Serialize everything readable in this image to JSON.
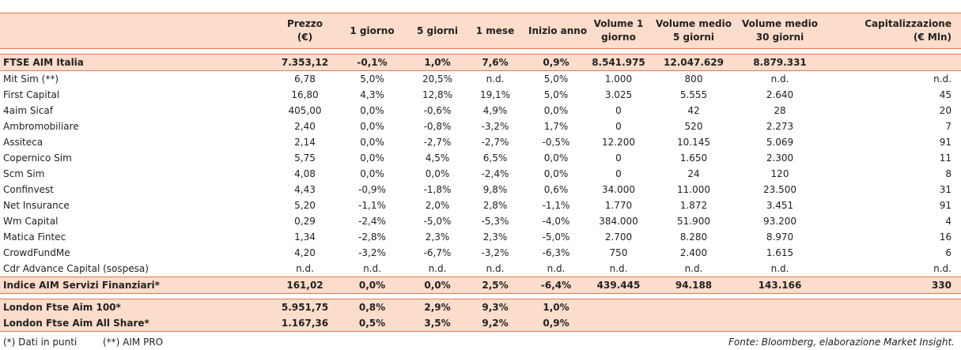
{
  "columns": [
    "",
    "Prezzo (€)",
    "1 giorno",
    "5 giorni",
    "1 mese",
    "Inizio anno",
    "Volume 1 giorno",
    "Volume medio 5 giorni",
    "Volume medio 30 giorni",
    "Capitalizzazione (€ Mln)"
  ],
  "header_lines": [
    [
      "",
      ""
    ],
    [
      "Prezzo",
      "(€)"
    ],
    [
      "1 giorno",
      ""
    ],
    [
      "5 giorni",
      ""
    ],
    [
      "1 mese",
      ""
    ],
    [
      "Inizio anno",
      ""
    ],
    [
      "Volume 1",
      "giorno"
    ],
    [
      "Volume medio",
      "5 giorni"
    ],
    [
      "Volume medio",
      "30 giorni"
    ],
    [
      "Capitalizzazione",
      "(€ Mln)"
    ]
  ],
  "index_row": [
    "FTSE AIM Italia",
    "7.353,12",
    "-0,1%",
    "1,0%",
    "7,6%",
    "0,9%",
    "8.541.975",
    "12.047.629",
    "8.879.331",
    ""
  ],
  "rows": [
    [
      "Mit Sim (**)",
      "6,78",
      "5,0%",
      "20,5%",
      "n.d.",
      "5,0%",
      "1.000",
      "800",
      "n.d.",
      "n.d."
    ],
    [
      "First Capital",
      "16,80",
      "4,3%",
      "12,8%",
      "19,1%",
      "5,0%",
      "3.025",
      "5.555",
      "2.640",
      "45"
    ],
    [
      "4aim Sicaf",
      "405,00",
      "0,0%",
      "-0,6%",
      "4,9%",
      "0,0%",
      "0",
      "42",
      "28",
      "20"
    ],
    [
      "Ambromobiliare",
      "2,40",
      "0,0%",
      "-0,8%",
      "-3,2%",
      "1,7%",
      "0",
      "520",
      "2.273",
      "7"
    ],
    [
      "Assiteca",
      "2,14",
      "0,0%",
      "-2,7%",
      "-2,7%",
      "-0,5%",
      "12.200",
      "10.145",
      "5.069",
      "91"
    ],
    [
      "Copernico Sim",
      "5,75",
      "0,0%",
      "4,5%",
      "6,5%",
      "0,0%",
      "0",
      "1.650",
      "2.300",
      "11"
    ],
    [
      "Scm Sim",
      "4,08",
      "0,0%",
      "0,0%",
      "-2,4%",
      "0,0%",
      "0",
      "24",
      "120",
      "8"
    ],
    [
      "Confinvest",
      "4,43",
      "-0,9%",
      "-1,8%",
      "9,8%",
      "0,6%",
      "34.000",
      "11.000",
      "23.500",
      "31"
    ],
    [
      "Net Insurance",
      "5,20",
      "-1,1%",
      "2,0%",
      "2,8%",
      "-1,1%",
      "1.770",
      "1.872",
      "3.451",
      "91"
    ],
    [
      "Wm Capital",
      "0,29",
      "-2,4%",
      "-5,0%",
      "-5,3%",
      "-4,0%",
      "384.000",
      "51.900",
      "93.200",
      "4"
    ],
    [
      "Matica Fintec",
      "1,34",
      "-2,8%",
      "2,3%",
      "2,3%",
      "-5,0%",
      "2.700",
      "8.280",
      "8.970",
      "16"
    ],
    [
      "CrowdFundMe",
      "4,20",
      "-3,2%",
      "-6,7%",
      "-3,2%",
      "-6,3%",
      "750",
      "2.400",
      "1.615",
      "6"
    ],
    [
      "Cdr Advance Capital (sospesa)",
      "n.d.",
      "n.d.",
      "n.d.",
      "n.d.",
      "n.d.",
      "n.d.",
      "n.d.",
      "n.d.",
      "n.d."
    ]
  ],
  "sector_row": [
    "Indice AIM Servizi Finanziari*",
    "161,02",
    "0,0%",
    "0,0%",
    "2,5%",
    "-6,4%",
    "439.445",
    "94.188",
    "143.166",
    "330"
  ],
  "london_rows": [
    [
      "London Ftse Aim 100*",
      "5.951,75",
      "0,8%",
      "2,9%",
      "9,3%",
      "1,0%",
      "",
      "",
      "",
      ""
    ],
    [
      "London Ftse Aim All Share*",
      "1.167,36",
      "0,5%",
      "3,5%",
      "9,2%",
      "0,9%",
      "",
      "",
      "",
      ""
    ]
  ],
  "footer": {
    "note1": "(*) Dati in punti",
    "note2": "(**) AIM PRO",
    "source": "Fonte: Bloomberg, elaborazione Market Insight."
  }
}
